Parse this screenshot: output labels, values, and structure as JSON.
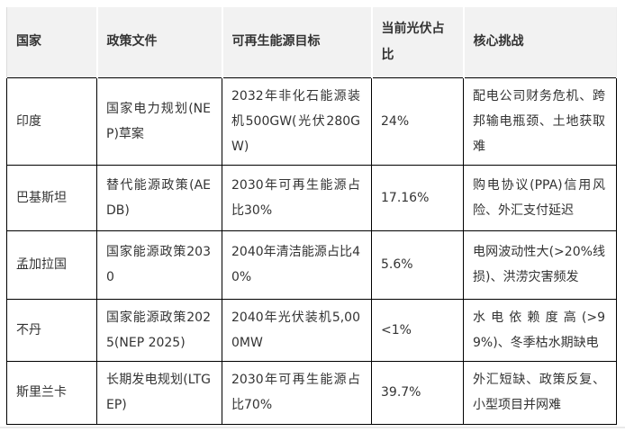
{
  "colors": {
    "header_bg": "#f2f2f2",
    "header_separator": "#ffffff",
    "cell_border": "#000000",
    "text": "#333333",
    "bottom_divider": "#e9e9e9",
    "page_bg": "#ffffff"
  },
  "table": {
    "headers": [
      "国家",
      "政策文件",
      "可再生能源目标",
      "当前光伏占比",
      "核心挑战"
    ],
    "rows": [
      {
        "country": "印度",
        "policy": "国家电力规划(NEP)草案",
        "target": "2032年非化石能源装机500GW(光伏280GW)",
        "pv_share": "24%",
        "challenges": "配电公司财务危机、跨邦输电瓶颈、土地获取难"
      },
      {
        "country": "巴基斯坦",
        "policy": "替代能源政策(AEDB)",
        "target": "2030年可再生能源占比30%",
        "pv_share": "17.16%",
        "challenges": "购电协议(PPA)信用风险、外汇支付延迟"
      },
      {
        "country": "孟加拉国",
        "policy": "国家能源政策2030",
        "target": "2040年清洁能源占比40%",
        "pv_share": "5.6%",
        "challenges": "电网波动性大(>20%线损)、洪涝灾害频发"
      },
      {
        "country": "不丹",
        "policy": "国家能源政策2025(NEP 2025)",
        "target": "2040年光伏装机5,000MW",
        "pv_share": "<1%",
        "challenges": "水电依赖度高(>99%)、冬季枯水期缺电"
      },
      {
        "country": "斯里兰卡",
        "policy": "长期发电规划(LTGEP)",
        "target": "2030年可再生能源占比70%",
        "pv_share": "39.7%",
        "challenges": "外汇短缺、政策反复、小型项目并网难"
      }
    ]
  }
}
